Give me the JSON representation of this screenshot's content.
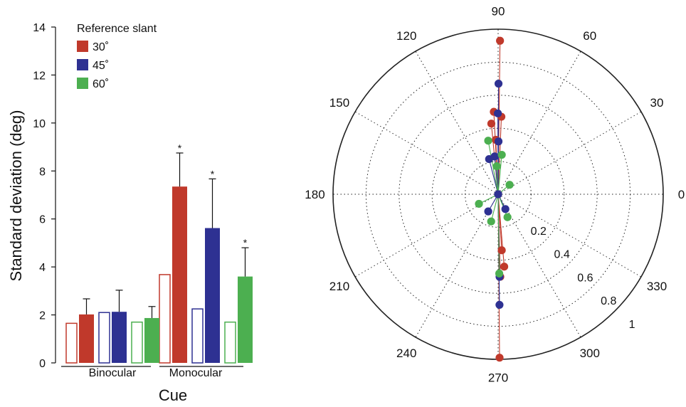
{
  "chart_data": [
    {
      "type": "bar",
      "xlabel": "Cue",
      "ylabel": "Standard deviation (deg)",
      "ylim": [
        0,
        14
      ],
      "yticks": [
        0,
        2,
        4,
        6,
        8,
        10,
        12,
        14
      ],
      "categories": [
        "Binocular",
        "Monocular"
      ],
      "legend_title": "Reference slant",
      "legend_position": "top-left",
      "series": [
        {
          "name": "30˚",
          "color": "#c0392b",
          "values": [
            2.02,
            7.35
          ],
          "error": [
            0.65,
            1.4
          ],
          "reference_values": [
            1.65,
            3.68
          ]
        },
        {
          "name": "45˚",
          "color": "#2e3192",
          "values": [
            2.13,
            5.62
          ],
          "error": [
            0.9,
            2.05
          ],
          "reference_values": [
            2.1,
            2.25
          ]
        },
        {
          "name": "60˚",
          "color": "#4caf50",
          "values": [
            1.87,
            3.6
          ],
          "error": [
            0.48,
            1.2
          ],
          "reference_values": [
            1.7,
            1.7
          ]
        }
      ],
      "significance_marker": "*",
      "significant": [
        [
          false,
          true
        ],
        [
          false,
          true
        ],
        [
          false,
          true
        ]
      ]
    },
    {
      "type": "scatter",
      "subtype": "polar",
      "angle_labels": [
        "0",
        "30",
        "60",
        "90",
        "120",
        "150",
        "180",
        "210",
        "240",
        "270",
        "300",
        "330"
      ],
      "radial_ticks": [
        0.2,
        0.4,
        0.6,
        0.8,
        1
      ],
      "radial_labels": [
        "0.2",
        "0.4",
        "0.6",
        "0.8",
        "1"
      ],
      "rlim": [
        0,
        1
      ],
      "grid": true,
      "series": [
        {
          "name": "30˚",
          "color": "#c0392b",
          "points": [
            {
              "angle": 89.3,
              "r": 0.93
            },
            {
              "angle": 93.0,
              "r": 0.5
            },
            {
              "angle": 87.6,
              "r": 0.47
            },
            {
              "angle": 95.5,
              "r": 0.43
            },
            {
              "angle": 92.5,
              "r": 0.33
            },
            {
              "angle": 270.5,
              "r": 0.99
            },
            {
              "angle": 271.5,
              "r": 0.5
            },
            {
              "angle": 274.8,
              "r": 0.44
            },
            {
              "angle": 273.7,
              "r": 0.34
            }
          ]
        },
        {
          "name": "45˚",
          "color": "#2e3192",
          "points": [
            {
              "angle": 89.8,
              "r": 0.67
            },
            {
              "angle": 90.2,
              "r": 0.49
            },
            {
              "angle": 89.6,
              "r": 0.32
            },
            {
              "angle": 95.2,
              "r": 0.23
            },
            {
              "angle": 104.4,
              "r": 0.22
            },
            {
              "angle": 0,
              "r": 0.0
            },
            {
              "angle": 240.0,
              "r": 0.12
            },
            {
              "angle": 296.0,
              "r": 0.1
            },
            {
              "angle": 271.0,
              "r": 0.5
            },
            {
              "angle": 270.7,
              "r": 0.67
            }
          ]
        },
        {
          "name": "60˚",
          "color": "#4caf50",
          "points": [
            {
              "angle": 100.5,
              "r": 0.33
            },
            {
              "angle": 84.7,
              "r": 0.24
            },
            {
              "angle": 92.7,
              "r": 0.17
            },
            {
              "angle": 39.6,
              "r": 0.09
            },
            {
              "angle": 206.5,
              "r": 0.13
            },
            {
              "angle": 255.6,
              "r": 0.17
            },
            {
              "angle": 292.2,
              "r": 0.15
            },
            {
              "angle": 270.8,
              "r": 0.48
            }
          ]
        }
      ]
    }
  ]
}
